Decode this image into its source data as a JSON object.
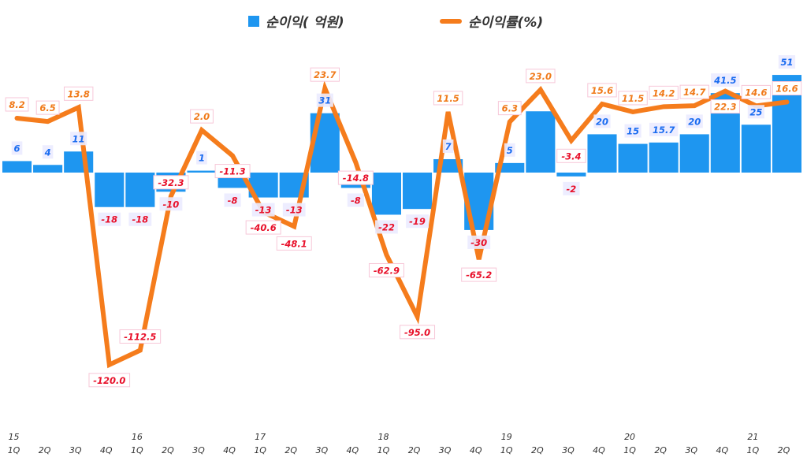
{
  "chart_data": {
    "type": "bar+line",
    "title": "",
    "categories": [
      "1Q",
      "2Q",
      "3Q",
      "4Q",
      "1Q",
      "2Q",
      "3Q",
      "4Q",
      "1Q",
      "2Q",
      "3Q",
      "4Q",
      "1Q",
      "2Q",
      "3Q",
      "4Q",
      "1Q",
      "2Q",
      "3Q",
      "4Q",
      "1Q",
      "2Q",
      "3Q",
      "4Q",
      "1Q",
      "2Q"
    ],
    "year_labels": [
      "15",
      "",
      "",
      "",
      "16",
      "",
      "",
      "",
      "17",
      "",
      "",
      "",
      "18",
      "",
      "",
      "",
      "19",
      "",
      "",
      "",
      "20",
      "",
      "",
      "",
      "21",
      ""
    ],
    "legend_position": "top",
    "grid": false,
    "series": [
      {
        "name": "순이익( 억원)",
        "type": "bar",
        "color": "#1e96f0",
        "values": [
          6,
          4,
          11,
          -18,
          -18,
          -10,
          1,
          -8,
          -13,
          -13,
          31,
          -8,
          -22,
          -19,
          7,
          -30,
          5,
          32,
          -2,
          20,
          15,
          15.7,
          20,
          41.5,
          25,
          51
        ],
        "labels": [
          "6",
          "4",
          "11",
          "-18",
          "-18",
          "-10",
          "1",
          "-8",
          "-13",
          "-13",
          "31",
          "-8",
          "-22",
          "-19",
          "7",
          "-30",
          "5",
          "",
          "-2",
          "20",
          "15",
          "15.7",
          "20",
          "41.5",
          "25",
          "51"
        ]
      },
      {
        "name": "순이익률(%)",
        "type": "line",
        "color": "#f57c1c",
        "values": [
          8.2,
          6.5,
          13.8,
          -120.0,
          -112.5,
          -32.3,
          2.0,
          -11.3,
          -40.6,
          -48.1,
          23.7,
          -14.8,
          -62.9,
          -95.0,
          11.5,
          -65.2,
          6.3,
          23.0,
          -3.4,
          15.6,
          11.5,
          14.2,
          14.7,
          22.3,
          14.6,
          16.6
        ],
        "labels": [
          "8.2",
          "6.5",
          "13.8",
          "-120.0",
          "-112.5",
          "-32.3",
          "2.0",
          "-11.3",
          "-40.6",
          "-48.1",
          "23.7",
          "-14.8",
          "-62.9",
          "-95.0",
          "11.5",
          "-65.2",
          "6.3",
          "23.0",
          "-3.4",
          "15.6",
          "11.5",
          "14.2",
          "14.7",
          "22.3",
          "14.6",
          "16.6"
        ]
      }
    ]
  }
}
